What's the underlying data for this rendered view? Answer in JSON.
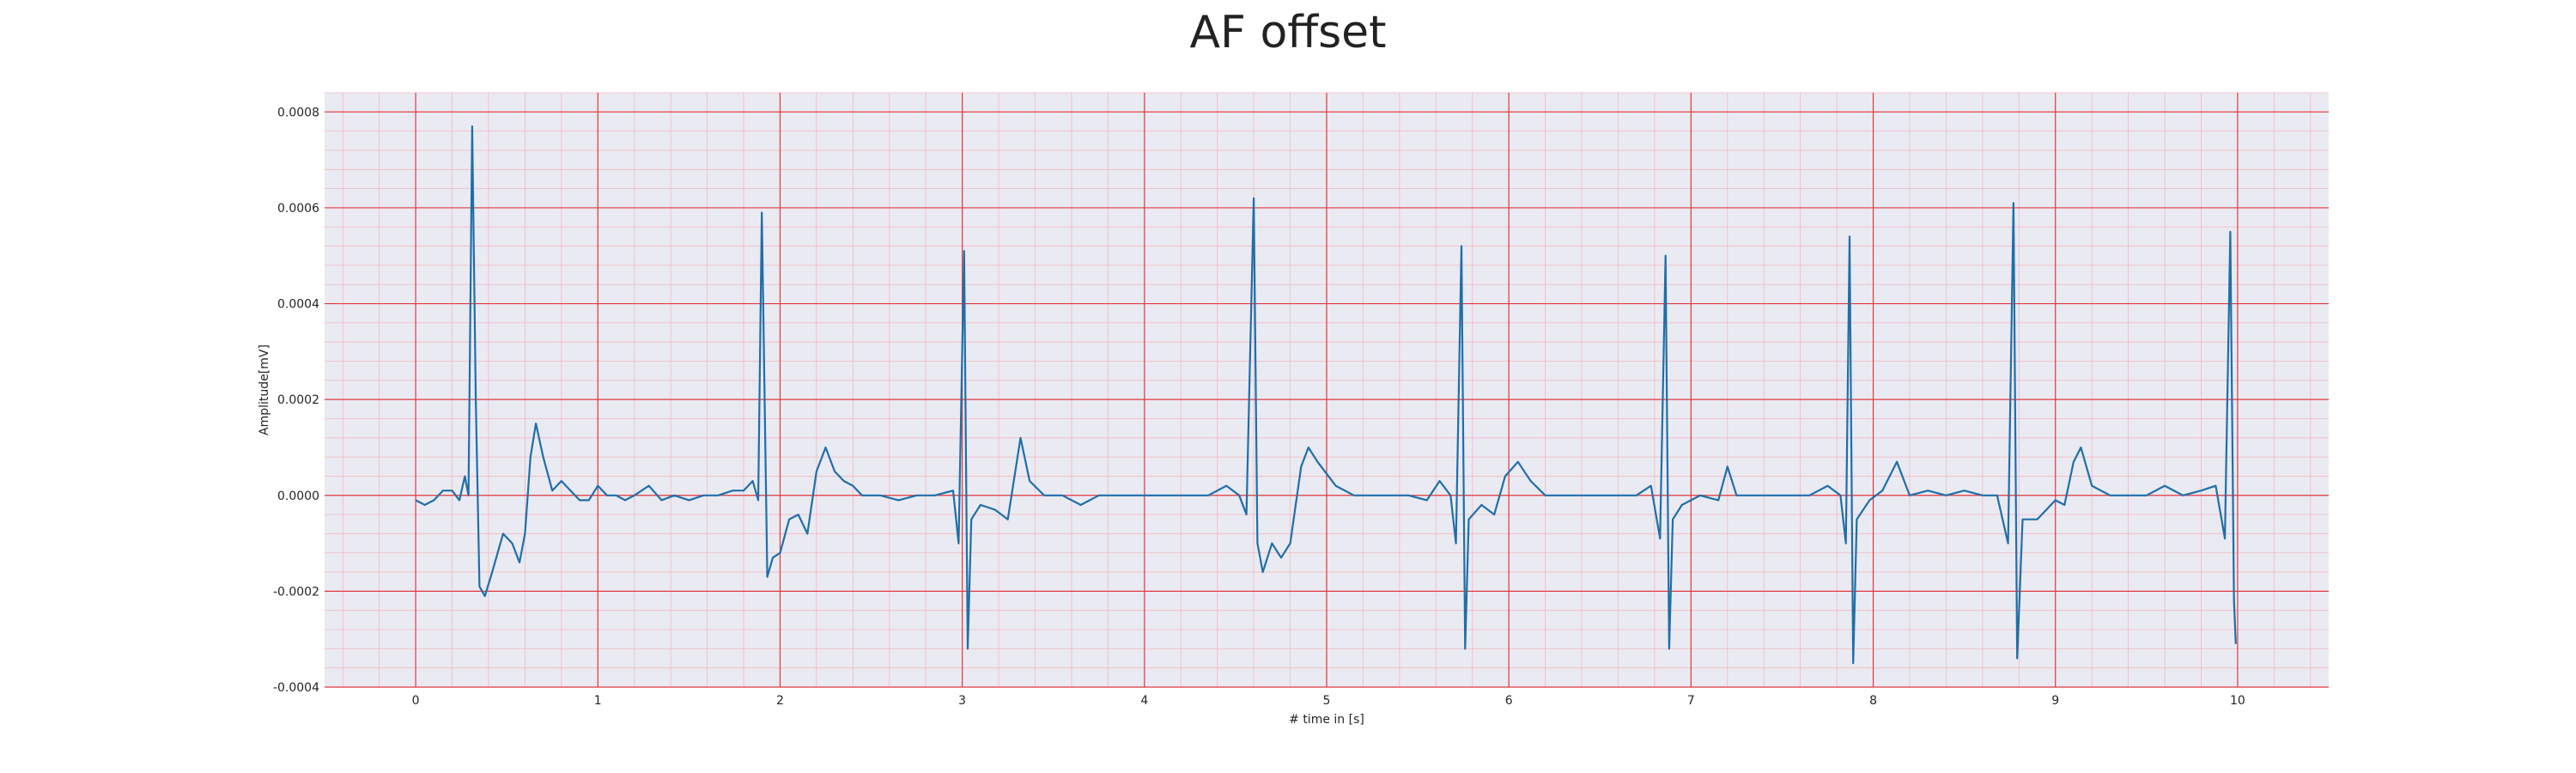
{
  "chart_data": {
    "type": "line",
    "title": "AF offset",
    "xlabel": "# time in [s]",
    "ylabel": "Amplitude[mV]",
    "xlim": [
      -0.5,
      10.5
    ],
    "ylim": [
      -0.0004,
      0.00084
    ],
    "x_ticks": [
      0,
      1,
      2,
      3,
      4,
      5,
      6,
      7,
      8,
      9,
      10
    ],
    "x_tick_labels": [
      "0",
      "1",
      "2",
      "3",
      "4",
      "5",
      "6",
      "7",
      "8",
      "9",
      "10"
    ],
    "y_ticks": [
      -0.0004,
      -0.0002,
      0.0,
      0.0002,
      0.0004,
      0.0006,
      0.0008
    ],
    "y_tick_labels": [
      "-0.0004",
      "-0.0002",
      "0.0000",
      "0.0002",
      "0.0004",
      "0.0006",
      "0.0008"
    ],
    "grid": true,
    "minor_grid": true,
    "colors": {
      "line": "#1f6fa8",
      "background": "#eaeaf2",
      "major_grid": "#e0393e",
      "minor_grid": "#f2b8c0"
    },
    "series": [
      {
        "points": [
          [
            0.0,
            -1e-05
          ],
          [
            0.05,
            -2e-05
          ],
          [
            0.1,
            -1e-05
          ],
          [
            0.15,
            1e-05
          ],
          [
            0.2,
            1e-05
          ],
          [
            0.24,
            -1e-05
          ],
          [
            0.27,
            4e-05
          ],
          [
            0.29,
            0.0
          ],
          [
            0.31,
            0.00077
          ],
          [
            0.33,
            0.0002
          ],
          [
            0.35,
            -0.00019
          ],
          [
            0.38,
            -0.00021
          ],
          [
            0.42,
            -0.00016
          ],
          [
            0.48,
            -8e-05
          ],
          [
            0.53,
            -0.0001
          ],
          [
            0.57,
            -0.00014
          ],
          [
            0.6,
            -8e-05
          ],
          [
            0.63,
            8e-05
          ],
          [
            0.66,
            0.00015
          ],
          [
            0.7,
            8e-05
          ],
          [
            0.75,
            1e-05
          ],
          [
            0.8,
            3e-05
          ],
          [
            0.85,
            1e-05
          ],
          [
            0.9,
            -1e-05
          ],
          [
            0.95,
            -1e-05
          ],
          [
            1.0,
            2e-05
          ],
          [
            1.05,
            0.0
          ],
          [
            1.1,
            0.0
          ],
          [
            1.15,
            -1e-05
          ],
          [
            1.2,
            0.0
          ],
          [
            1.28,
            2e-05
          ],
          [
            1.35,
            -1e-05
          ],
          [
            1.42,
            0.0
          ],
          [
            1.5,
            -1e-05
          ],
          [
            1.58,
            0.0
          ],
          [
            1.66,
            0.0
          ],
          [
            1.74,
            1e-05
          ],
          [
            1.8,
            1e-05
          ],
          [
            1.85,
            3e-05
          ],
          [
            1.88,
            -1e-05
          ],
          [
            1.9,
            0.00059
          ],
          [
            1.93,
            -0.00017
          ],
          [
            1.96,
            -0.00013
          ],
          [
            2.0,
            -0.00012
          ],
          [
            2.05,
            -5e-05
          ],
          [
            2.1,
            -4e-05
          ],
          [
            2.15,
            -8e-05
          ],
          [
            2.2,
            5e-05
          ],
          [
            2.25,
            0.0001
          ],
          [
            2.3,
            5e-05
          ],
          [
            2.35,
            3e-05
          ],
          [
            2.4,
            2e-05
          ],
          [
            2.45,
            0.0
          ],
          [
            2.55,
            0.0
          ],
          [
            2.65,
            -1e-05
          ],
          [
            2.75,
            0.0
          ],
          [
            2.85,
            0.0
          ],
          [
            2.95,
            1e-05
          ],
          [
            2.98,
            -0.0001
          ],
          [
            3.01,
            0.00051
          ],
          [
            3.03,
            -0.00032
          ],
          [
            3.05,
            -5e-05
          ],
          [
            3.1,
            -2e-05
          ],
          [
            3.18,
            -3e-05
          ],
          [
            3.25,
            -5e-05
          ],
          [
            3.32,
            0.00012
          ],
          [
            3.37,
            3e-05
          ],
          [
            3.45,
            0.0
          ],
          [
            3.55,
            0.0
          ],
          [
            3.65,
            -2e-05
          ],
          [
            3.75,
            0.0
          ],
          [
            3.85,
            0.0
          ],
          [
            3.95,
            0.0
          ],
          [
            4.05,
            0.0
          ],
          [
            4.15,
            0.0
          ],
          [
            4.25,
            0.0
          ],
          [
            4.35,
            0.0
          ],
          [
            4.45,
            2e-05
          ],
          [
            4.52,
            0.0
          ],
          [
            4.56,
            -4e-05
          ],
          [
            4.6,
            0.00062
          ],
          [
            4.62,
            -0.0001
          ],
          [
            4.65,
            -0.00016
          ],
          [
            4.7,
            -0.0001
          ],
          [
            4.75,
            -0.00013
          ],
          [
            4.8,
            -0.0001
          ],
          [
            4.86,
            6e-05
          ],
          [
            4.9,
            0.0001
          ],
          [
            4.95,
            7e-05
          ],
          [
            5.05,
            2e-05
          ],
          [
            5.15,
            0.0
          ],
          [
            5.25,
            0.0
          ],
          [
            5.35,
            0.0
          ],
          [
            5.45,
            0.0
          ],
          [
            5.55,
            -1e-05
          ],
          [
            5.62,
            3e-05
          ],
          [
            5.68,
            0.0
          ],
          [
            5.71,
            -0.0001
          ],
          [
            5.74,
            0.00052
          ],
          [
            5.76,
            -0.00032
          ],
          [
            5.78,
            -5e-05
          ],
          [
            5.85,
            -2e-05
          ],
          [
            5.92,
            -4e-05
          ],
          [
            5.98,
            4e-05
          ],
          [
            6.05,
            7e-05
          ],
          [
            6.12,
            3e-05
          ],
          [
            6.2,
            0.0
          ],
          [
            6.3,
            0.0
          ],
          [
            6.4,
            0.0
          ],
          [
            6.5,
            0.0
          ],
          [
            6.6,
            0.0
          ],
          [
            6.7,
            0.0
          ],
          [
            6.78,
            2e-05
          ],
          [
            6.83,
            -9e-05
          ],
          [
            6.86,
            0.0005
          ],
          [
            6.88,
            -0.00032
          ],
          [
            6.9,
            -5e-05
          ],
          [
            6.95,
            -2e-05
          ],
          [
            7.05,
            0.0
          ],
          [
            7.15,
            -1e-05
          ],
          [
            7.2,
            6e-05
          ],
          [
            7.25,
            0.0
          ],
          [
            7.35,
            0.0
          ],
          [
            7.45,
            0.0
          ],
          [
            7.55,
            0.0
          ],
          [
            7.65,
            0.0
          ],
          [
            7.75,
            2e-05
          ],
          [
            7.82,
            0.0
          ],
          [
            7.85,
            -0.0001
          ],
          [
            7.87,
            0.00054
          ],
          [
            7.89,
            -0.00035
          ],
          [
            7.91,
            -5e-05
          ],
          [
            7.98,
            -1e-05
          ],
          [
            8.05,
            1e-05
          ],
          [
            8.13,
            7e-05
          ],
          [
            8.2,
            0.0
          ],
          [
            8.3,
            1e-05
          ],
          [
            8.4,
            0.0
          ],
          [
            8.5,
            1e-05
          ],
          [
            8.6,
            0.0
          ],
          [
            8.68,
            0.0
          ],
          [
            8.74,
            -0.0001
          ],
          [
            8.77,
            0.00061
          ],
          [
            8.79,
            -0.00034
          ],
          [
            8.82,
            -5e-05
          ],
          [
            8.9,
            -5e-05
          ],
          [
            9.0,
            -1e-05
          ],
          [
            9.05,
            -2e-05
          ],
          [
            9.1,
            7e-05
          ],
          [
            9.14,
            0.0001
          ],
          [
            9.2,
            2e-05
          ],
          [
            9.3,
            0.0
          ],
          [
            9.4,
            0.0
          ],
          [
            9.5,
            0.0
          ],
          [
            9.6,
            2e-05
          ],
          [
            9.7,
            0.0
          ],
          [
            9.8,
            1e-05
          ],
          [
            9.88,
            2e-05
          ],
          [
            9.93,
            -9e-05
          ],
          [
            9.96,
            0.00055
          ],
          [
            9.98,
            -0.00022
          ],
          [
            9.99,
            -0.00031
          ]
        ]
      }
    ]
  }
}
